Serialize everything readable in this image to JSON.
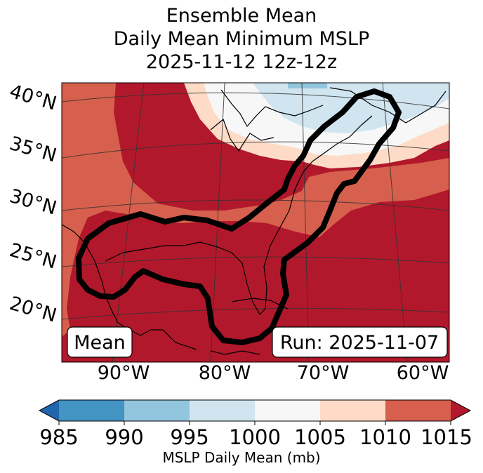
{
  "title_lines": [
    "Ensemble Mean",
    "Daily Mean Minimum MSLP",
    "2025-11-12 12z-12z"
  ],
  "map": {
    "lat_labels": [
      "40°N",
      "35°N",
      "30°N",
      "25°N",
      "20°N"
    ],
    "lon_labels": [
      "90°W",
      "80°W",
      "70°W",
      "60°W"
    ],
    "mean_box": "Mean",
    "run_box": "Run: 2025-11-07",
    "contour_description": "Thick black mean MSLP contour enclosing Gulf of Mexico and US East Coast"
  },
  "colorbar": {
    "label": "MSLP Daily Mean (mb)",
    "ticks": [
      "985",
      "990",
      "995",
      "1000",
      "1005",
      "1010",
      "1015"
    ],
    "colors": {
      "below": "#2166ac",
      "985-990": "#4393c3",
      "990-995": "#92c5de",
      "995-1000": "#d1e5f0",
      "1000-1005": "#f7f7f7",
      "1005-1010": "#fddbc7",
      "1010-1015": "#d6604d",
      "above": "#b2182b"
    }
  }
}
